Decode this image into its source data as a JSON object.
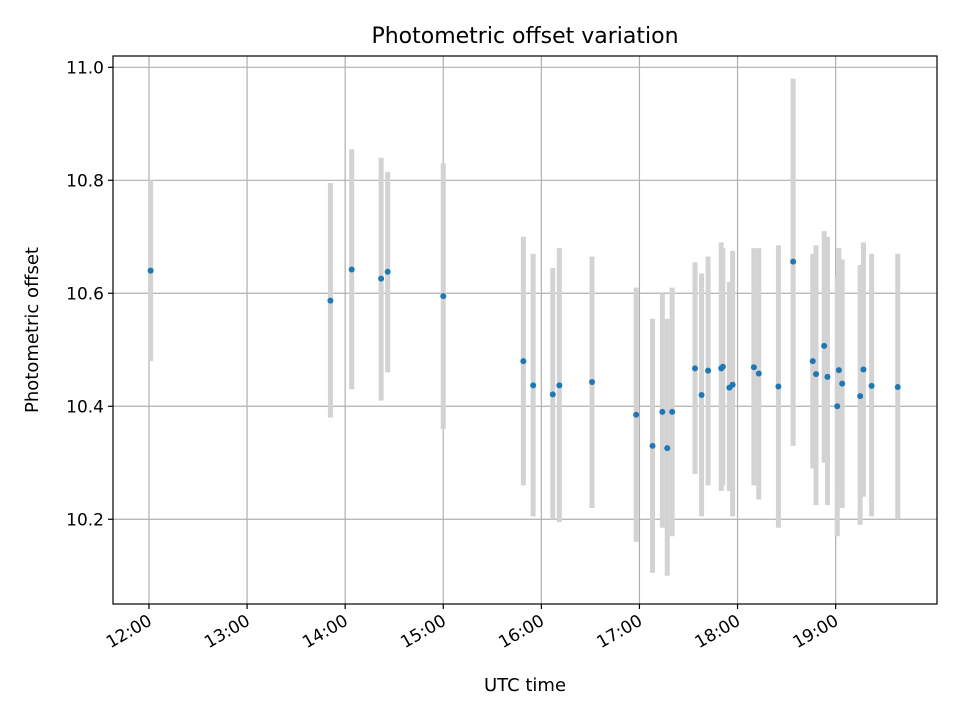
{
  "chart_data": {
    "type": "scatter",
    "title": "Photometric offset variation",
    "xlabel": "UTC time",
    "ylabel": "Photometric offset",
    "xlim": [
      "11:38",
      "20:02"
    ],
    "ylim": [
      10.05,
      11.02
    ],
    "grid": true,
    "x_ticks": [
      "12:00",
      "13:00",
      "14:00",
      "15:00",
      "16:00",
      "17:00",
      "18:00",
      "19:00"
    ],
    "y_ticks": [
      "10.2",
      "10.4",
      "10.6",
      "10.8",
      "11.0"
    ],
    "point_color": "#1f77b4",
    "errorbar_color": "#d3d3d3",
    "points": [
      {
        "t": "12:01",
        "y": 10.64,
        "lo": 10.48,
        "hi": 10.8
      },
      {
        "t": "13:51",
        "y": 10.587,
        "lo": 10.38,
        "hi": 10.795
      },
      {
        "t": "14:04",
        "y": 10.642,
        "lo": 10.43,
        "hi": 10.855
      },
      {
        "t": "14:22",
        "y": 10.626,
        "lo": 10.41,
        "hi": 10.84
      },
      {
        "t": "14:26",
        "y": 10.638,
        "lo": 10.46,
        "hi": 10.815
      },
      {
        "t": "15:00",
        "y": 10.595,
        "lo": 10.36,
        "hi": 10.83
      },
      {
        "t": "15:49",
        "y": 10.48,
        "lo": 10.26,
        "hi": 10.7
      },
      {
        "t": "15:55",
        "y": 10.437,
        "lo": 10.205,
        "hi": 10.67
      },
      {
        "t": "16:07",
        "y": 10.421,
        "lo": 10.2,
        "hi": 10.645
      },
      {
        "t": "16:11",
        "y": 10.437,
        "lo": 10.195,
        "hi": 10.68
      },
      {
        "t": "16:31",
        "y": 10.443,
        "lo": 10.22,
        "hi": 10.665
      },
      {
        "t": "16:58",
        "y": 10.385,
        "lo": 10.16,
        "hi": 10.61
      },
      {
        "t": "17:08",
        "y": 10.33,
        "lo": 10.105,
        "hi": 10.555
      },
      {
        "t": "17:14",
        "y": 10.39,
        "lo": 10.185,
        "hi": 10.6
      },
      {
        "t": "17:17",
        "y": 10.326,
        "lo": 10.1,
        "hi": 10.555
      },
      {
        "t": "17:20",
        "y": 10.39,
        "lo": 10.17,
        "hi": 10.61
      },
      {
        "t": "17:34",
        "y": 10.467,
        "lo": 10.28,
        "hi": 10.655
      },
      {
        "t": "17:38",
        "y": 10.42,
        "lo": 10.205,
        "hi": 10.635
      },
      {
        "t": "17:42",
        "y": 10.463,
        "lo": 10.26,
        "hi": 10.665
      },
      {
        "t": "17:50",
        "y": 10.467,
        "lo": 10.25,
        "hi": 10.69
      },
      {
        "t": "17:51",
        "y": 10.47,
        "lo": 10.26,
        "hi": 10.68
      },
      {
        "t": "17:55",
        "y": 10.433,
        "lo": 10.25,
        "hi": 10.62
      },
      {
        "t": "17:57",
        "y": 10.438,
        "lo": 10.205,
        "hi": 10.675
      },
      {
        "t": "18:10",
        "y": 10.469,
        "lo": 10.26,
        "hi": 10.68
      },
      {
        "t": "18:13",
        "y": 10.458,
        "lo": 10.235,
        "hi": 10.68
      },
      {
        "t": "18:25",
        "y": 10.435,
        "lo": 10.185,
        "hi": 10.685
      },
      {
        "t": "18:34",
        "y": 10.656,
        "lo": 10.33,
        "hi": 10.98
      },
      {
        "t": "18:46",
        "y": 10.48,
        "lo": 10.29,
        "hi": 10.67
      },
      {
        "t": "18:48",
        "y": 10.457,
        "lo": 10.225,
        "hi": 10.685
      },
      {
        "t": "18:53",
        "y": 10.507,
        "lo": 10.3,
        "hi": 10.71
      },
      {
        "t": "18:55",
        "y": 10.452,
        "lo": 10.225,
        "hi": 10.7
      },
      {
        "t": "19:01",
        "y": 10.4,
        "lo": 10.17,
        "hi": 10.63
      },
      {
        "t": "19:02",
        "y": 10.464,
        "lo": 10.25,
        "hi": 10.68
      },
      {
        "t": "19:04",
        "y": 10.44,
        "lo": 10.22,
        "hi": 10.66
      },
      {
        "t": "19:15",
        "y": 10.418,
        "lo": 10.19,
        "hi": 10.65
      },
      {
        "t": "19:17",
        "y": 10.465,
        "lo": 10.24,
        "hi": 10.69
      },
      {
        "t": "19:22",
        "y": 10.436,
        "lo": 10.205,
        "hi": 10.67
      },
      {
        "t": "19:38",
        "y": 10.434,
        "lo": 10.2,
        "hi": 10.67
      }
    ]
  }
}
